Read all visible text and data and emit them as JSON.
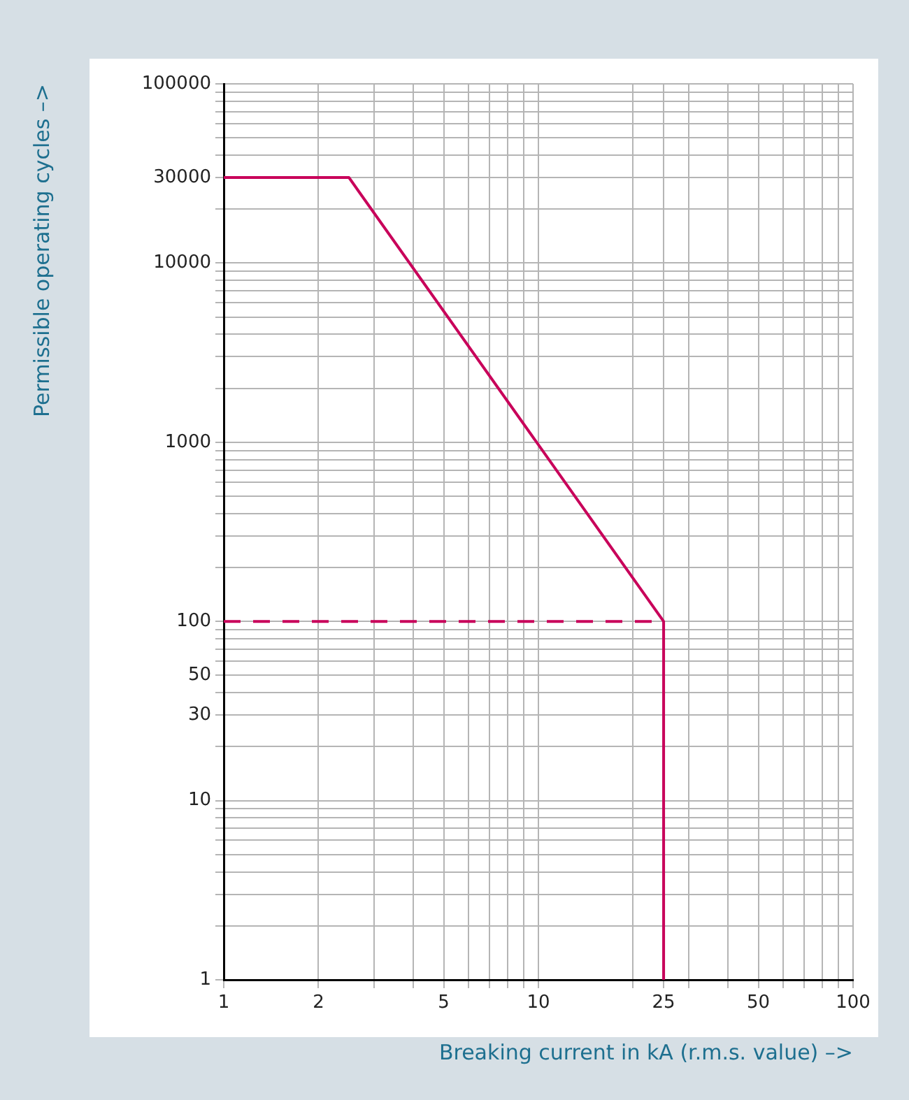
{
  "chart_data": {
    "type": "line",
    "xlabel": "Breaking current in kA (r.m.s. value) –>",
    "ylabel": "Permissible operating cycles –>",
    "log": "xy",
    "grid": true,
    "marker": "none",
    "legend": false,
    "xlim": [
      1,
      100
    ],
    "ylim": [
      1,
      100000
    ],
    "xticks": [
      1,
      2,
      {
        "value": 3,
        "label": null
      },
      {
        "value": 4,
        "label": null
      },
      5,
      {
        "value": 6,
        "label": null
      },
      {
        "value": 7,
        "label": null
      },
      {
        "value": 8,
        "label": null
      },
      {
        "value": 9,
        "label": null
      },
      10,
      {
        "value": 20,
        "label": null
      },
      25,
      {
        "value": 30,
        "label": null
      },
      {
        "value": 40,
        "label": null
      },
      50,
      {
        "value": 60,
        "label": null
      },
      {
        "value": 70,
        "label": null
      },
      {
        "value": 80,
        "label": null
      },
      {
        "value": 90,
        "label": null
      },
      100
    ],
    "yticks": [
      1,
      {
        "value": 2,
        "label": null
      },
      {
        "value": 3,
        "label": null
      },
      {
        "value": 4,
        "label": null
      },
      {
        "value": 5,
        "label": null
      },
      {
        "value": 6,
        "label": null
      },
      {
        "value": 7,
        "label": null
      },
      {
        "value": 8,
        "label": null
      },
      {
        "value": 9,
        "label": null
      },
      10,
      {
        "value": 20,
        "label": null
      },
      30,
      {
        "value": 40,
        "label": null
      },
      50,
      {
        "value": 60,
        "label": null
      },
      {
        "value": 70,
        "label": null
      },
      {
        "value": 80,
        "label": null
      },
      {
        "value": 90,
        "label": null
      },
      100,
      {
        "value": 200,
        "label": null
      },
      {
        "value": 300,
        "label": null
      },
      {
        "value": 400,
        "label": null
      },
      {
        "value": 500,
        "label": null
      },
      {
        "value": 600,
        "label": null
      },
      {
        "value": 700,
        "label": null
      },
      {
        "value": 800,
        "label": null
      },
      {
        "value": 900,
        "label": null
      },
      1000,
      {
        "value": 2000,
        "label": null
      },
      {
        "value": 3000,
        "label": null
      },
      {
        "value": 4000,
        "label": null
      },
      {
        "value": 5000,
        "label": null
      },
      {
        "value": 6000,
        "label": null
      },
      {
        "value": 7000,
        "label": null
      },
      {
        "value": 8000,
        "label": null
      },
      {
        "value": 9000,
        "label": null
      },
      10000,
      {
        "value": 20000,
        "label": null
      },
      30000,
      {
        "value": 40000,
        "label": null
      },
      {
        "value": 50000,
        "label": null
      },
      {
        "value": 60000,
        "label": null
      },
      {
        "value": 70000,
        "label": null
      },
      {
        "value": 80000,
        "label": null
      },
      {
        "value": 90000,
        "label": null
      },
      100000
    ],
    "series": [
      {
        "color": "#c8005a",
        "line_style": "solid",
        "x": [
          1,
          2.5,
          25,
          25
        ],
        "values": [
          30000,
          30000,
          100,
          1
        ]
      },
      {
        "color": "#c8005a",
        "line_style": "dashed",
        "x": [
          1,
          25
        ],
        "values": [
          100,
          100
        ]
      }
    ]
  }
}
